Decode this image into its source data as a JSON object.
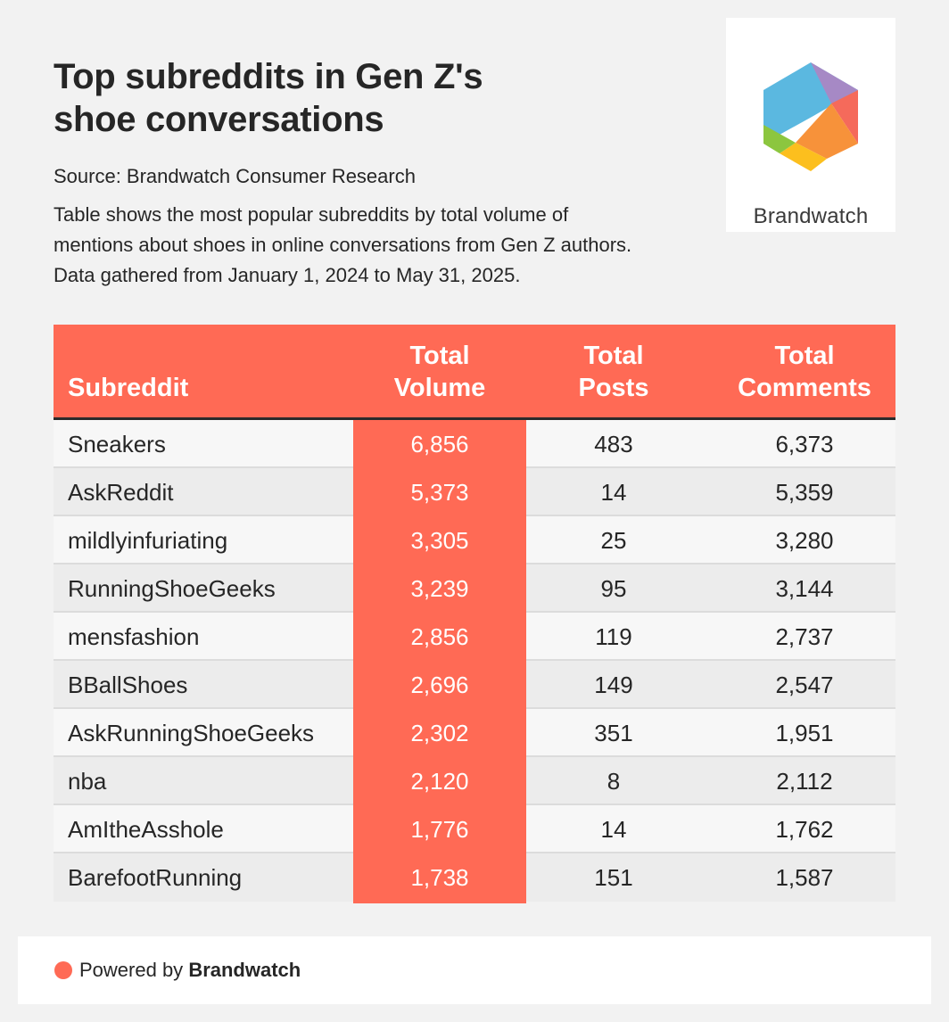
{
  "header": {
    "title_line1": "Top subreddits in Gen Z's",
    "title_line2": "shoe conversations",
    "source": "Source: Brandwatch Consumer Research",
    "desc_line1": "Table shows the most popular subreddits by total volume of",
    "desc_line2": "mentions about shoes in online conversations from Gen Z authors.",
    "desc_line3": "Data gathered from January 1, 2024 to May 31, 2025."
  },
  "logo": {
    "wordmark": "Brandwatch",
    "icon": "brandwatch-hexagon-logo"
  },
  "colors": {
    "accent": "#ff6a55",
    "background": "#f2f2f2",
    "text": "#262626"
  },
  "chart_data": {
    "type": "table",
    "title": "Top subreddits in Gen Z's shoe conversations",
    "columns": [
      {
        "line1": "",
        "line2": "Subreddit"
      },
      {
        "line1": "Total",
        "line2": "Volume"
      },
      {
        "line1": "Total",
        "line2": "Posts"
      },
      {
        "line1": "Total",
        "line2": "Comments"
      }
    ],
    "rows": [
      {
        "subreddit": "Sneakers",
        "volume": "6,856",
        "posts": "483",
        "comments": "6,373"
      },
      {
        "subreddit": "AskReddit",
        "volume": "5,373",
        "posts": "14",
        "comments": "5,359"
      },
      {
        "subreddit": "mildlyinfuriating",
        "volume": "3,305",
        "posts": "25",
        "comments": "3,280"
      },
      {
        "subreddit": "RunningShoeGeeks",
        "volume": "3,239",
        "posts": "95",
        "comments": "3,144"
      },
      {
        "subreddit": "mensfashion",
        "volume": "2,856",
        "posts": "119",
        "comments": "2,737"
      },
      {
        "subreddit": "BBallShoes",
        "volume": "2,696",
        "posts": "149",
        "comments": "2,547"
      },
      {
        "subreddit": "AskRunningShoeGeeks",
        "volume": "2,302",
        "posts": "351",
        "comments": "1,951"
      },
      {
        "subreddit": "nba",
        "volume": "2,120",
        "posts": "8",
        "comments": "2,112"
      },
      {
        "subreddit": "AmItheAsshole",
        "volume": "1,776",
        "posts": "14",
        "comments": "1,762"
      },
      {
        "subreddit": "BarefootRunning",
        "volume": "1,738",
        "posts": "151",
        "comments": "1,587"
      }
    ]
  },
  "footer": {
    "powered_prefix": "Powered by",
    "powered_brand": "Brandwatch"
  }
}
